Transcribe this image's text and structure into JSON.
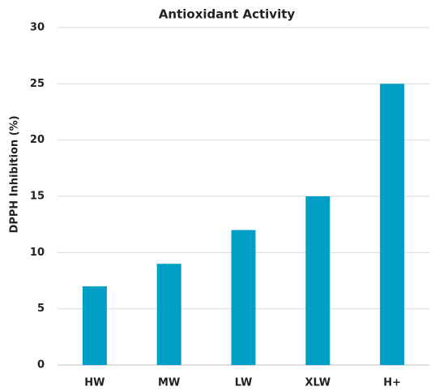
{
  "chart_data": {
    "type": "bar",
    "title": "Antioxidant Activity",
    "y_label": "DPPH Inhibition (%)",
    "categories": [
      "HW",
      "MW",
      "LW",
      "XLW",
      "H+"
    ],
    "values": [
      7,
      9,
      12,
      15,
      25
    ],
    "color": "#00a0c6",
    "ylim": [
      0,
      30
    ],
    "yticks": [
      0,
      5,
      10,
      15,
      20,
      25,
      30
    ],
    "grid": true
  }
}
